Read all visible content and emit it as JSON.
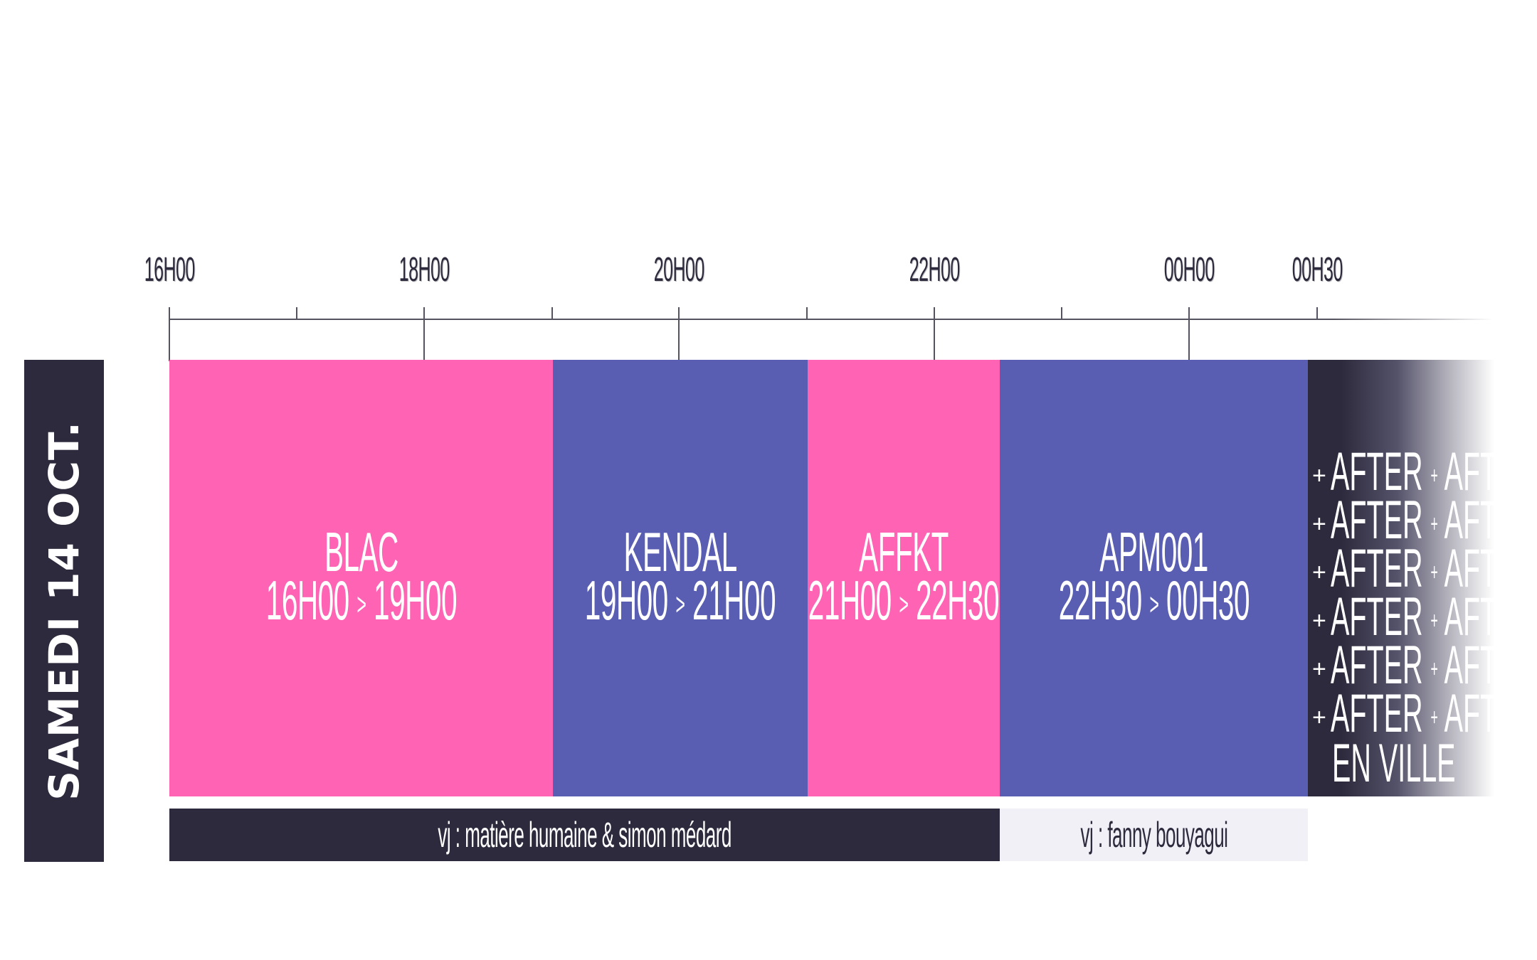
{
  "date_label": "SAMEDI 14 OCT.",
  "time_axis": {
    "labels": [
      "16H00",
      "18H00",
      "20H00",
      "22H00",
      "00H00",
      "00H30"
    ]
  },
  "slots": [
    {
      "artist": "BLAC",
      "start": "16H00",
      "end": "19H00",
      "color": "#ff64b4"
    },
    {
      "artist": "KENDAL",
      "start": "19H00",
      "end": "21H00",
      "color": "#5a5eb3"
    },
    {
      "artist": "AFFKT",
      "start": "21H00",
      "end": "22H30",
      "color": "#ff64b4"
    },
    {
      "artist": "APM001",
      "start": "22H30",
      "end": "00H30",
      "color": "#5a5eb3"
    }
  ],
  "time_separator": ">",
  "after": {
    "plus": "+",
    "word": "AFTER",
    "final": "EN VILLE"
  },
  "vj": [
    {
      "label": "vj : matière humaine & simon médard",
      "color": "#2d2a3d"
    },
    {
      "label": "vj : fanny bouyagui",
      "color": "#f0f0f6"
    }
  ],
  "colors": {
    "pink": "#ff64b4",
    "blue": "#5a5eb3",
    "dark": "#2d2a3d"
  }
}
